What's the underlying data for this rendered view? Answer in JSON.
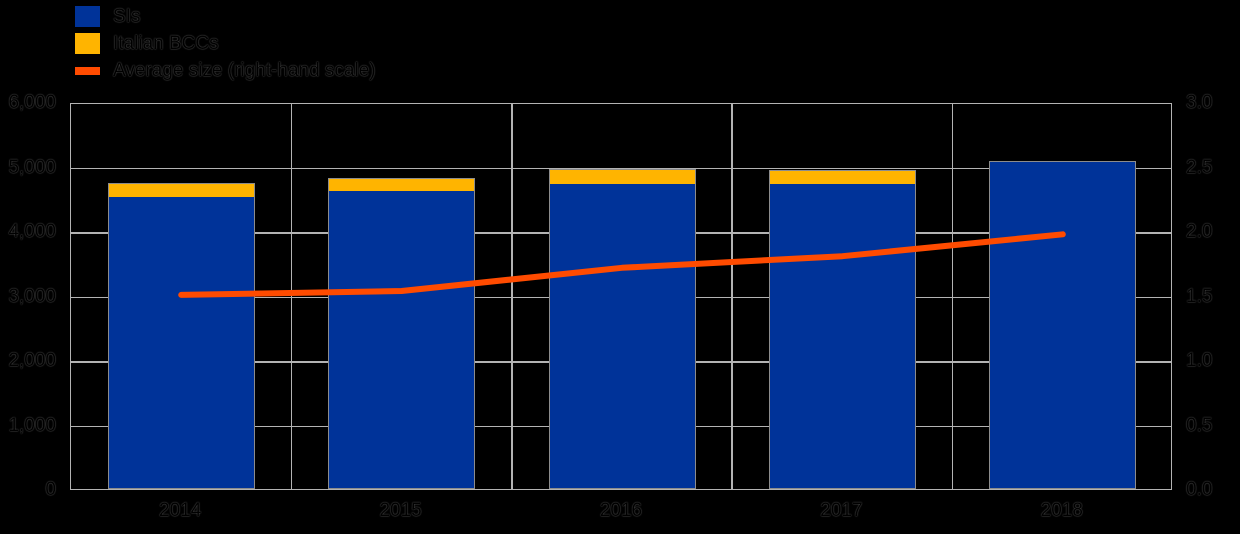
{
  "legend": {
    "items": [
      {
        "label": "SIs",
        "color": "#003399",
        "swatch": "square"
      },
      {
        "label": "Italian BCCs",
        "color": "#FFB400",
        "swatch": "square"
      },
      {
        "label": "Average size (right-hand scale)",
        "color": "#FF4B00",
        "swatch": "line"
      }
    ]
  },
  "chart_data": {
    "type": "bar",
    "categories": [
      "2014",
      "2015",
      "2016",
      "2017",
      "2018"
    ],
    "series": [
      {
        "name": "SIs",
        "type": "bar",
        "stack": true,
        "color": "#003399",
        "values": [
          4550,
          4630,
          4750,
          4740,
          5090
        ]
      },
      {
        "name": "Italian BCCs",
        "type": "bar",
        "stack": true,
        "color": "#FFB400",
        "values": [
          190,
          190,
          210,
          210,
          0
        ]
      },
      {
        "name": "Average size (right-hand scale)",
        "type": "line",
        "axis": "right",
        "color": "#FF4B00",
        "values": [
          1.52,
          1.55,
          1.73,
          1.82,
          1.99
        ]
      }
    ],
    "left_axis": {
      "min": 0,
      "max": 6000,
      "step": 1000,
      "tick_labels": [
        "0",
        "1,000",
        "2,000",
        "3,000",
        "4,000",
        "5,000",
        "6,000"
      ]
    },
    "right_axis": {
      "min": 0,
      "max": 3.0,
      "step": 0.5,
      "tick_labels": [
        "0.0",
        "0.5",
        "1.0",
        "1.5",
        "2.0",
        "2.5",
        "3.0"
      ]
    },
    "grid": true,
    "legend_position": "top-left",
    "title": "",
    "xlabel": "",
    "ylabel": ""
  },
  "colors": {
    "background": "#000000",
    "grid": "#b3b3b3",
    "bar_edge": "#8c8c8c",
    "text": "#000000"
  }
}
